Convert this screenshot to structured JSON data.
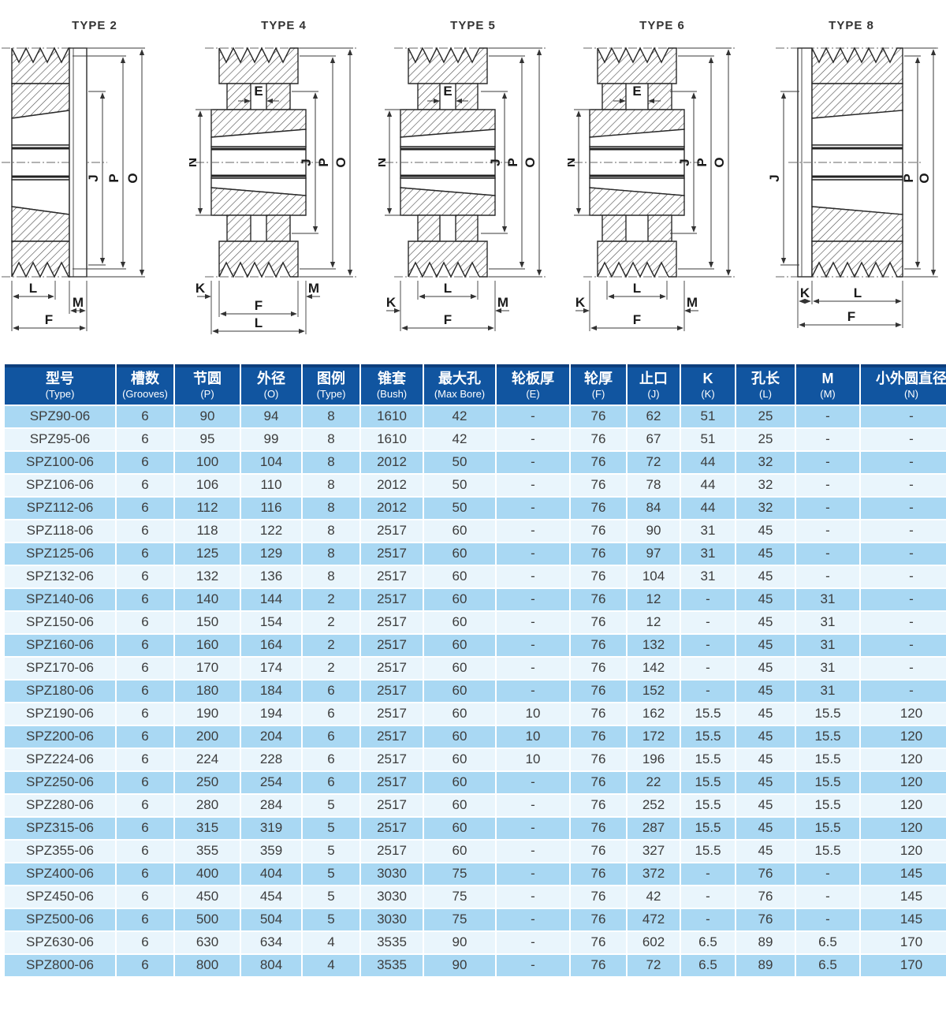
{
  "diagrams": [
    {
      "title": "TYPE 2",
      "labels": {
        "J": "J",
        "P": "P",
        "O": "O",
        "L": "L",
        "M": "M",
        "F": "F"
      }
    },
    {
      "title": "TYPE 4",
      "labels": {
        "E": "E",
        "N": "N",
        "J": "J",
        "P": "P",
        "O": "O",
        "K": "K",
        "M": "M",
        "F": "F",
        "L": "L"
      }
    },
    {
      "title": "TYPE 5",
      "labels": {
        "E": "E",
        "N": "N",
        "J": "J",
        "P": "P",
        "O": "O",
        "L": "L",
        "K": "K",
        "M": "M",
        "F": "F"
      }
    },
    {
      "title": "TYPE 6",
      "labels": {
        "E": "E",
        "N": "N",
        "J": "J",
        "P": "P",
        "O": "O",
        "L": "L",
        "K": "K",
        "M": "M",
        "F": "F"
      }
    },
    {
      "title": "TYPE 8",
      "labels": {
        "J": "J",
        "P": "P",
        "O": "O",
        "K": "K",
        "L": "L",
        "F": "F"
      }
    }
  ],
  "table": {
    "colors": {
      "header_bg": "#1155a0",
      "header_top_border": "#0d3e7c",
      "header_text": "#ffffff",
      "row_light_blue": "#a9d8f3",
      "row_pale": "#e9f5fc",
      "cell_text": "#3c3c3c"
    },
    "columns": [
      {
        "key": "type",
        "zh": "型号",
        "en": "(Type)"
      },
      {
        "key": "grooves",
        "zh": "槽数",
        "en": "(Grooves)"
      },
      {
        "key": "p",
        "zh": "节圆",
        "en": "(P)"
      },
      {
        "key": "o",
        "zh": "外径",
        "en": "(O)"
      },
      {
        "key": "legend",
        "zh": "图例",
        "en": "(Type)"
      },
      {
        "key": "bush",
        "zh": "锥套",
        "en": "(Bush)"
      },
      {
        "key": "maxbore",
        "zh": "最大孔",
        "en": "(Max Bore)"
      },
      {
        "key": "e",
        "zh": "轮板厚",
        "en": "(E)"
      },
      {
        "key": "f",
        "zh": "轮厚",
        "en": "(F)"
      },
      {
        "key": "j",
        "zh": "止口",
        "en": "(J)"
      },
      {
        "key": "k",
        "zh": "K",
        "en": "(K)"
      },
      {
        "key": "l",
        "zh": "孔长",
        "en": "(L)"
      },
      {
        "key": "m",
        "zh": "M",
        "en": "(M)"
      },
      {
        "key": "n",
        "zh": "小外圆直径",
        "en": "(N)"
      }
    ],
    "rows": [
      [
        "SPZ90-06",
        "6",
        "90",
        "94",
        "8",
        "1610",
        "42",
        "-",
        "76",
        "62",
        "51",
        "25",
        "-",
        "-"
      ],
      [
        "SPZ95-06",
        "6",
        "95",
        "99",
        "8",
        "1610",
        "42",
        "-",
        "76",
        "67",
        "51",
        "25",
        "-",
        "-"
      ],
      [
        "SPZ100-06",
        "6",
        "100",
        "104",
        "8",
        "2012",
        "50",
        "-",
        "76",
        "72",
        "44",
        "32",
        "-",
        "-"
      ],
      [
        "SPZ106-06",
        "6",
        "106",
        "110",
        "8",
        "2012",
        "50",
        "-",
        "76",
        "78",
        "44",
        "32",
        "-",
        "-"
      ],
      [
        "SPZ112-06",
        "6",
        "112",
        "116",
        "8",
        "2012",
        "50",
        "-",
        "76",
        "84",
        "44",
        "32",
        "-",
        "-"
      ],
      [
        "SPZ118-06",
        "6",
        "118",
        "122",
        "8",
        "2517",
        "60",
        "-",
        "76",
        "90",
        "31",
        "45",
        "-",
        "-"
      ],
      [
        "SPZ125-06",
        "6",
        "125",
        "129",
        "8",
        "2517",
        "60",
        "-",
        "76",
        "97",
        "31",
        "45",
        "-",
        "-"
      ],
      [
        "SPZ132-06",
        "6",
        "132",
        "136",
        "8",
        "2517",
        "60",
        "-",
        "76",
        "104",
        "31",
        "45",
        "-",
        "-"
      ],
      [
        "SPZ140-06",
        "6",
        "140",
        "144",
        "2",
        "2517",
        "60",
        "-",
        "76",
        "12",
        "-",
        "45",
        "31",
        "-"
      ],
      [
        "SPZ150-06",
        "6",
        "150",
        "154",
        "2",
        "2517",
        "60",
        "-",
        "76",
        "12",
        "-",
        "45",
        "31",
        "-"
      ],
      [
        "SPZ160-06",
        "6",
        "160",
        "164",
        "2",
        "2517",
        "60",
        "-",
        "76",
        "132",
        "-",
        "45",
        "31",
        "-"
      ],
      [
        "SPZ170-06",
        "6",
        "170",
        "174",
        "2",
        "2517",
        "60",
        "-",
        "76",
        "142",
        "-",
        "45",
        "31",
        "-"
      ],
      [
        "SPZ180-06",
        "6",
        "180",
        "184",
        "6",
        "2517",
        "60",
        "-",
        "76",
        "152",
        "-",
        "45",
        "31",
        "-"
      ],
      [
        "SPZ190-06",
        "6",
        "190",
        "194",
        "6",
        "2517",
        "60",
        "10",
        "76",
        "162",
        "15.5",
        "45",
        "15.5",
        "120"
      ],
      [
        "SPZ200-06",
        "6",
        "200",
        "204",
        "6",
        "2517",
        "60",
        "10",
        "76",
        "172",
        "15.5",
        "45",
        "15.5",
        "120"
      ],
      [
        "SPZ224-06",
        "6",
        "224",
        "228",
        "6",
        "2517",
        "60",
        "10",
        "76",
        "196",
        "15.5",
        "45",
        "15.5",
        "120"
      ],
      [
        "SPZ250-06",
        "6",
        "250",
        "254",
        "6",
        "2517",
        "60",
        "-",
        "76",
        "22",
        "15.5",
        "45",
        "15.5",
        "120"
      ],
      [
        "SPZ280-06",
        "6",
        "280",
        "284",
        "5",
        "2517",
        "60",
        "-",
        "76",
        "252",
        "15.5",
        "45",
        "15.5",
        "120"
      ],
      [
        "SPZ315-06",
        "6",
        "315",
        "319",
        "5",
        "2517",
        "60",
        "-",
        "76",
        "287",
        "15.5",
        "45",
        "15.5",
        "120"
      ],
      [
        "SPZ355-06",
        "6",
        "355",
        "359",
        "5",
        "2517",
        "60",
        "-",
        "76",
        "327",
        "15.5",
        "45",
        "15.5",
        "120"
      ],
      [
        "SPZ400-06",
        "6",
        "400",
        "404",
        "5",
        "3030",
        "75",
        "-",
        "76",
        "372",
        "-",
        "76",
        "-",
        "145"
      ],
      [
        "SPZ450-06",
        "6",
        "450",
        "454",
        "5",
        "3030",
        "75",
        "-",
        "76",
        "42",
        "-",
        "76",
        "-",
        "145"
      ],
      [
        "SPZ500-06",
        "6",
        "500",
        "504",
        "5",
        "3030",
        "75",
        "-",
        "76",
        "472",
        "-",
        "76",
        "-",
        "145"
      ],
      [
        "SPZ630-06",
        "6",
        "630",
        "634",
        "4",
        "3535",
        "90",
        "-",
        "76",
        "602",
        "6.5",
        "89",
        "6.5",
        "170"
      ],
      [
        "SPZ800-06",
        "6",
        "800",
        "804",
        "4",
        "3535",
        "90",
        "-",
        "76",
        "72",
        "6.5",
        "89",
        "6.5",
        "170"
      ]
    ]
  }
}
